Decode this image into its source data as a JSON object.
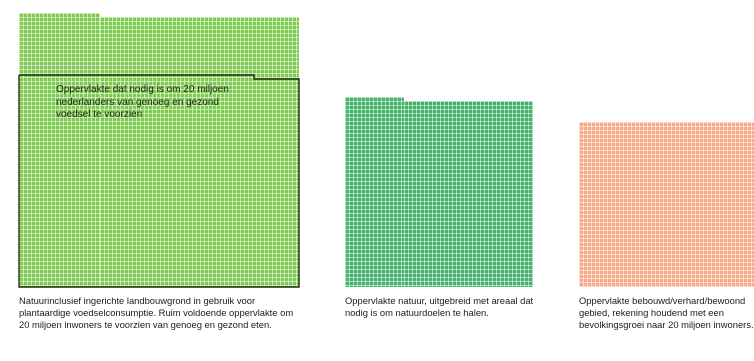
{
  "colors": {
    "agriculture": "#7ccb50",
    "nature": "#42b26a",
    "built": "#f7a985",
    "outline": "#1c2a12"
  },
  "blocks": [
    {
      "id": "agriculture",
      "callout": "Oppervlakte dat nodig is om 20 miljoen nederlanders van genoeg en gezond voedsel te voorzien",
      "caption": "Natuurinclusief ingerichte landbouwgrond in gebruik voor plantaardige voedselconsumptie. Ruim voldoende oppervlakte om 20 miljoen inwoners te voorzien van genoeg en gezond eten."
    },
    {
      "id": "nature",
      "caption": "Oppervlakte natuur, uitgebreid met areaal dat nodig is om natuurdoelen te halen."
    },
    {
      "id": "built",
      "caption": "Oppervlakte bebouwd/verhard/bewoond gebied, rekening houdend met een bevolkingsgroei naar 20 miljoen inwoners."
    }
  ]
}
